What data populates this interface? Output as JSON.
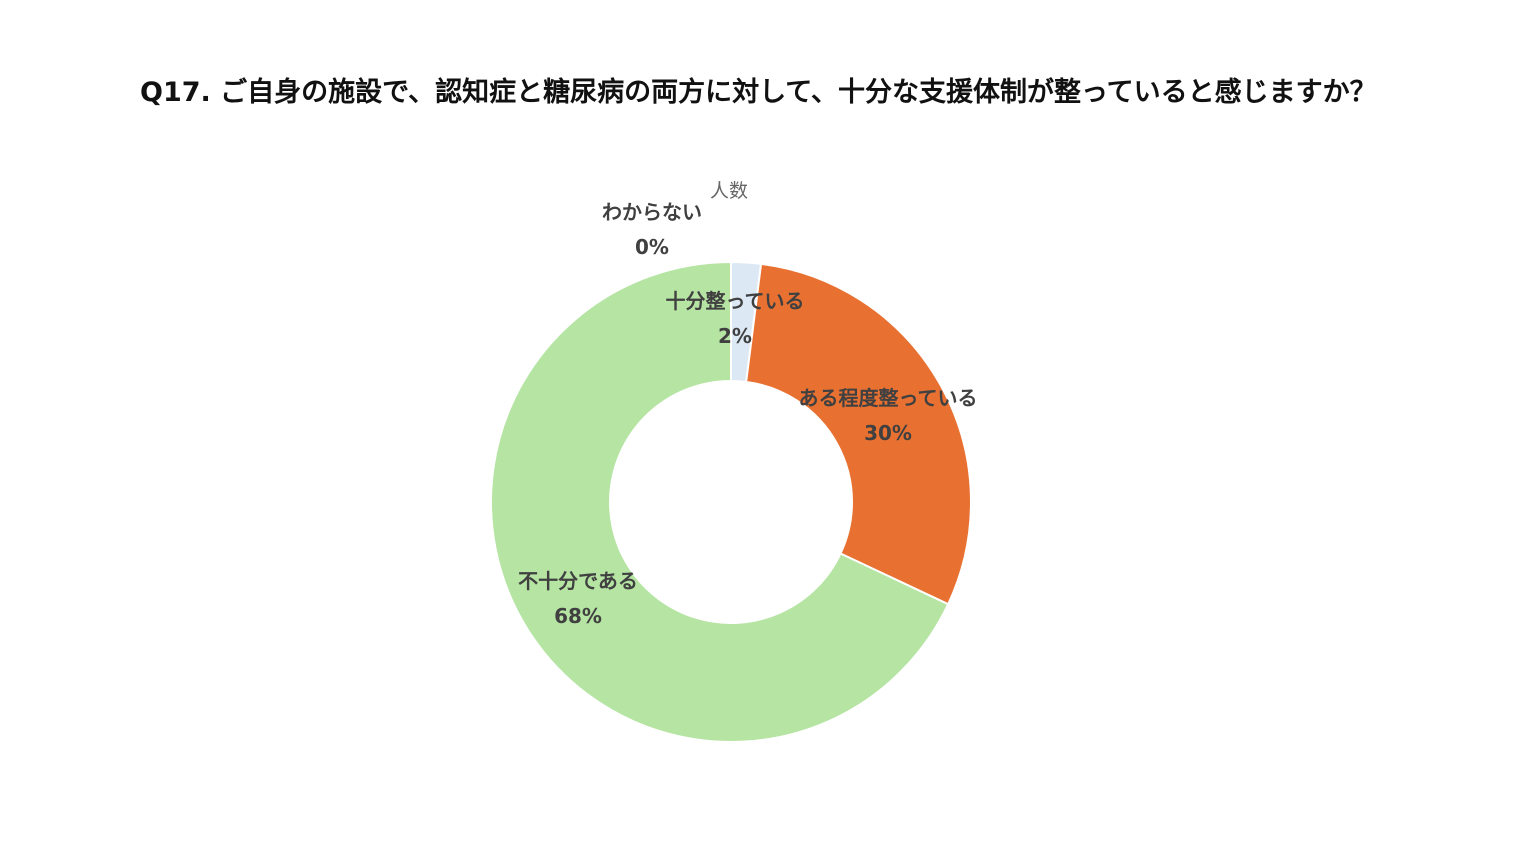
{
  "question_title": "Q17. ご自身の施設で、認知症と糖尿病の両方に対して、十分な支援体制が整っていると感じますか？",
  "chart_data": {
    "type": "pie",
    "variant": "donut",
    "title": "人数",
    "categories": [
      "十分整っている",
      "ある程度整っている",
      "不十分である",
      "わからない"
    ],
    "values": [
      2,
      30,
      68,
      0
    ],
    "unit": "%",
    "data_labels": [
      "2%",
      "30%",
      "68%",
      "0%"
    ],
    "colors": [
      "#dde8f5",
      "#e87132",
      "#b5e4a3",
      "#a5a5a5"
    ],
    "start_angle": "top",
    "direction": "clockwise",
    "legend": "none"
  }
}
